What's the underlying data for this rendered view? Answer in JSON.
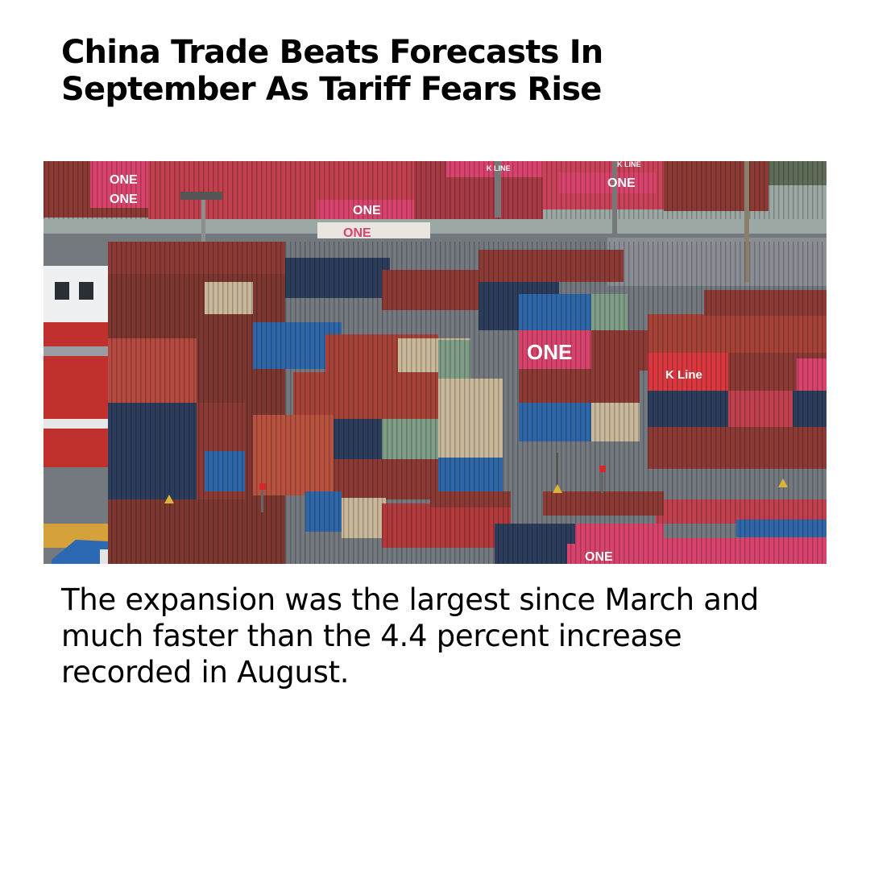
{
  "article": {
    "headline": "China Trade Beats Forecasts In September As Tariff Fears Rise",
    "body": "The expansion was the largest since March and much faster than the 4.4 percent increase recorded in August."
  },
  "photo": {
    "subject": "container-port-stacks",
    "container_labels": [
      "ONE",
      "ONE",
      "ONE",
      "ONE",
      "K LINE",
      "K LINE",
      "ONE",
      "ONE",
      "K Line",
      "ONE"
    ],
    "colors": {
      "maroon": "#8c3a35",
      "pink": "#d8436b",
      "blue": "#2f66a8",
      "navy": "#2c3d5c",
      "beige": "#c9b89a",
      "green": "#7f9e86",
      "ground": "#74787f",
      "sky": "#9ca8a4"
    }
  }
}
